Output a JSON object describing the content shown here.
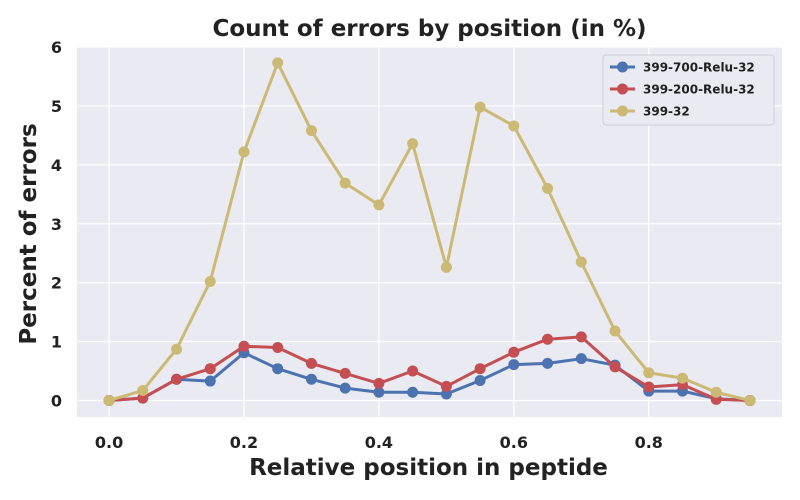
{
  "chart_data": {
    "type": "line",
    "title": "Count of errors by position (in %)",
    "xlabel": "Relative position in peptide",
    "ylabel": "Percent of errors",
    "x": [
      0.0,
      0.05,
      0.1,
      0.15,
      0.2,
      0.25,
      0.3,
      0.35,
      0.4,
      0.45,
      0.5,
      0.55,
      0.6,
      0.65,
      0.7,
      0.75,
      0.8,
      0.85,
      0.9,
      0.95
    ],
    "xlim": [
      -0.0475,
      0.9975
    ],
    "ylim": [
      -0.28,
      6.0
    ],
    "xticks": [
      0.0,
      0.2,
      0.4,
      0.6,
      0.8
    ],
    "xtick_labels": [
      "0.0",
      "0.2",
      "0.4",
      "0.6",
      "0.8"
    ],
    "yticks": [
      0,
      1,
      2,
      3,
      4,
      5,
      6
    ],
    "ytick_labels": [
      "0",
      "1",
      "2",
      "3",
      "4",
      "5",
      "6"
    ],
    "grid": true,
    "legend_position": "top-right",
    "background_color": "#EAEAF2",
    "series": [
      {
        "name": "399-700-Relu-32",
        "color": "#4C72B0",
        "values": [
          0.0,
          0.04,
          0.36,
          0.33,
          0.81,
          0.54,
          0.36,
          0.21,
          0.14,
          0.14,
          0.11,
          0.34,
          0.61,
          0.63,
          0.71,
          0.6,
          0.16,
          0.16,
          0.03,
          0.0
        ]
      },
      {
        "name": "399-200-Relu-32",
        "color": "#C44E52",
        "values": [
          0.0,
          0.04,
          0.36,
          0.54,
          0.92,
          0.9,
          0.63,
          0.46,
          0.29,
          0.5,
          0.24,
          0.54,
          0.82,
          1.04,
          1.08,
          0.57,
          0.23,
          0.27,
          0.02,
          0.0
        ]
      },
      {
        "name": "399-32",
        "color": "#CCB974",
        "values": [
          0.0,
          0.17,
          0.87,
          2.02,
          4.22,
          5.73,
          4.58,
          3.69,
          3.32,
          4.36,
          2.26,
          4.98,
          4.66,
          3.6,
          2.35,
          1.18,
          0.47,
          0.38,
          0.14,
          0.0
        ]
      }
    ]
  }
}
